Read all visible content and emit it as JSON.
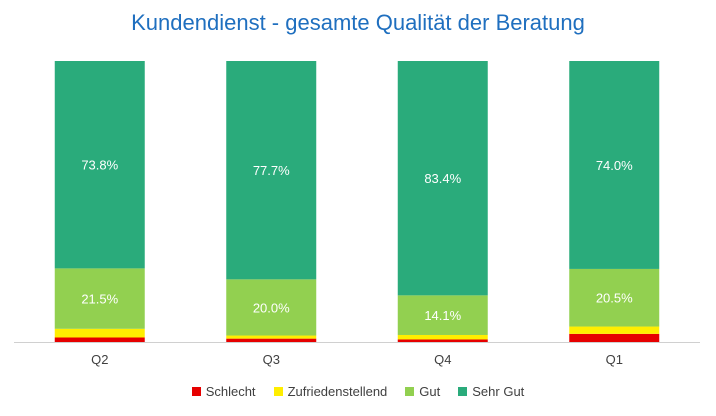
{
  "chart_data": {
    "type": "bar",
    "stacked": true,
    "percent_stacked": true,
    "title": "Kundendienst - gesamte Qualität der Beratung",
    "categories": [
      "Q2",
      "Q3",
      "Q4",
      "Q1"
    ],
    "series": [
      {
        "name": "Schlecht",
        "color": "#e60000",
        "values": [
          1.6,
          1.2,
          0.9,
          2.9
        ],
        "labels": [
          "",
          "",
          "",
          ""
        ]
      },
      {
        "name": "Zufriedenstellend",
        "color": "#ffee00",
        "values": [
          3.1,
          1.1,
          1.6,
          2.6
        ],
        "labels": [
          "",
          "",
          "",
          ""
        ]
      },
      {
        "name": "Gut",
        "color": "#92d050",
        "values": [
          21.5,
          20.0,
          14.1,
          20.5
        ],
        "labels": [
          "21.5%",
          "20.0%",
          "14.1%",
          "20.5%"
        ]
      },
      {
        "name": "Sehr Gut",
        "color": "#2aab7b",
        "values": [
          73.8,
          77.7,
          83.4,
          74.0
        ],
        "labels": [
          "73.8%",
          "77.7%",
          "83.4%",
          "74.0%"
        ]
      }
    ],
    "ylim": [
      0,
      100
    ],
    "grid": false,
    "legend_position": "bottom"
  }
}
